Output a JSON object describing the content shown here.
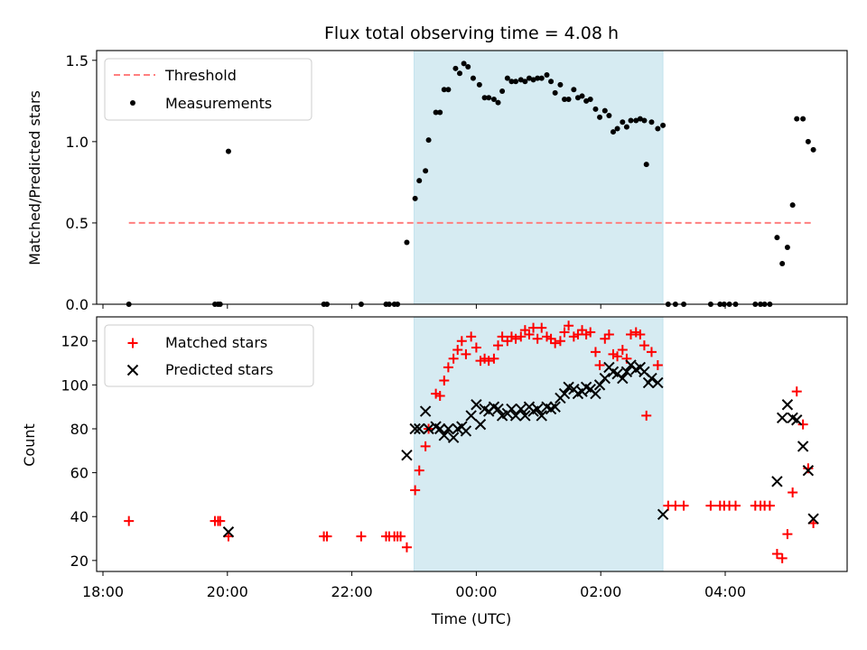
{
  "chart_data": {
    "title": "Flux total observing time = 4.08 h",
    "xlabel": "Time (UTC)",
    "x_ticks": [
      "18:00",
      "20:00",
      "22:00",
      "00:00",
      "02:00",
      "04:00"
    ],
    "shaded_interval": {
      "start": "23:00",
      "end": "03:00",
      "color": "#add8e6"
    },
    "top": {
      "type": "scatter",
      "ylabel": "Matched/Predicted stars",
      "ylim": [
        0,
        1.56
      ],
      "yticks": [
        "0.0",
        "0.5",
        "1.0",
        "1.5"
      ],
      "legend_position": "upper left",
      "threshold": {
        "name": "Threshold",
        "value": 0.5,
        "from": "18:25",
        "to": "05:25",
        "color": "#ff7f7f"
      },
      "series": [
        {
          "name": "Measurements",
          "color": "#000000",
          "points": [
            [
              "18:25",
              0
            ],
            [
              "19:48",
              0
            ],
            [
              "19:51",
              0
            ],
            [
              "19:53",
              0
            ],
            [
              "20:01",
              0.94
            ],
            [
              "21:33",
              0
            ],
            [
              "21:36",
              0
            ],
            [
              "22:09",
              0
            ],
            [
              "22:33",
              0
            ],
            [
              "22:36",
              0
            ],
            [
              "22:41",
              0
            ],
            [
              "22:44",
              0
            ],
            [
              "22:53",
              0.38
            ],
            [
              "23:01",
              0.65
            ],
            [
              "23:05",
              0.76
            ],
            [
              "23:11",
              0.82
            ],
            [
              "23:14",
              1.01
            ],
            [
              "23:21",
              1.18
            ],
            [
              "23:25",
              1.18
            ],
            [
              "23:29",
              1.32
            ],
            [
              "23:33",
              1.32
            ],
            [
              "23:40",
              1.45
            ],
            [
              "23:44",
              1.42
            ],
            [
              "23:48",
              1.48
            ],
            [
              "23:52",
              1.46
            ],
            [
              "23:57",
              1.39
            ],
            [
              "00:03",
              1.35
            ],
            [
              "00:08",
              1.27
            ],
            [
              "00:12",
              1.27
            ],
            [
              "00:17",
              1.26
            ],
            [
              "00:21",
              1.24
            ],
            [
              "00:25",
              1.31
            ],
            [
              "00:30",
              1.39
            ],
            [
              "00:34",
              1.37
            ],
            [
              "00:38",
              1.37
            ],
            [
              "00:43",
              1.38
            ],
            [
              "00:47",
              1.37
            ],
            [
              "00:51",
              1.39
            ],
            [
              "00:55",
              1.38
            ],
            [
              "00:59",
              1.39
            ],
            [
              "01:03",
              1.39
            ],
            [
              "01:08",
              1.41
            ],
            [
              "01:12",
              1.37
            ],
            [
              "01:16",
              1.3
            ],
            [
              "01:21",
              1.35
            ],
            [
              "01:25",
              1.26
            ],
            [
              "01:29",
              1.26
            ],
            [
              "01:34",
              1.32
            ],
            [
              "01:38",
              1.27
            ],
            [
              "01:42",
              1.28
            ],
            [
              "01:46",
              1.25
            ],
            [
              "01:50",
              1.26
            ],
            [
              "01:55",
              1.2
            ],
            [
              "01:59",
              1.15
            ],
            [
              "02:04",
              1.19
            ],
            [
              "02:08",
              1.16
            ],
            [
              "02:12",
              1.06
            ],
            [
              "02:16",
              1.08
            ],
            [
              "02:21",
              1.12
            ],
            [
              "02:25",
              1.09
            ],
            [
              "02:29",
              1.13
            ],
            [
              "02:34",
              1.13
            ],
            [
              "02:38",
              1.14
            ],
            [
              "02:42",
              1.13
            ],
            [
              "02:44",
              0.86
            ],
            [
              "02:49",
              1.12
            ],
            [
              "02:55",
              1.08
            ],
            [
              "03:00",
              1.1
            ],
            [
              "03:05",
              0
            ],
            [
              "03:12",
              0
            ],
            [
              "03:20",
              0
            ],
            [
              "03:46",
              0
            ],
            [
              "03:55",
              0
            ],
            [
              "03:59",
              0
            ],
            [
              "04:04",
              0
            ],
            [
              "04:10",
              0
            ],
            [
              "04:29",
              0
            ],
            [
              "04:34",
              0
            ],
            [
              "04:38",
              0
            ],
            [
              "04:43",
              0
            ],
            [
              "04:50",
              0.41
            ],
            [
              "04:55",
              0.25
            ],
            [
              "05:00",
              0.35
            ],
            [
              "05:05",
              0.61
            ],
            [
              "05:09",
              1.14
            ],
            [
              "05:15",
              1.14
            ],
            [
              "05:20",
              1.0
            ],
            [
              "05:25",
              0.95
            ]
          ]
        }
      ]
    },
    "bottom": {
      "type": "scatter",
      "ylabel": "Count",
      "ylim": [
        15,
        131
      ],
      "yticks": [
        "20",
        "40",
        "60",
        "80",
        "100",
        "120"
      ],
      "legend_position": "upper left",
      "series": [
        {
          "name": "Matched stars",
          "marker": "+",
          "color": "#ff0000",
          "points": [
            [
              "18:25",
              38
            ],
            [
              "19:48",
              38
            ],
            [
              "19:51",
              38
            ],
            [
              "19:53",
              38
            ],
            [
              "20:01",
              31
            ],
            [
              "21:33",
              31
            ],
            [
              "21:36",
              31
            ],
            [
              "22:09",
              31
            ],
            [
              "22:33",
              31
            ],
            [
              "22:36",
              31
            ],
            [
              "22:41",
              31
            ],
            [
              "22:44",
              31
            ],
            [
              "22:47",
              31
            ],
            [
              "22:53",
              26
            ],
            [
              "23:01",
              52
            ],
            [
              "23:05",
              61
            ],
            [
              "23:11",
              72
            ],
            [
              "23:14",
              80
            ],
            [
              "23:21",
              96
            ],
            [
              "23:25",
              95
            ],
            [
              "23:29",
              102
            ],
            [
              "23:33",
              108
            ],
            [
              "23:38",
              112
            ],
            [
              "23:42",
              116
            ],
            [
              "23:46",
              120
            ],
            [
              "23:50",
              114
            ],
            [
              "23:55",
              122
            ],
            [
              "00:00",
              117
            ],
            [
              "00:04",
              111
            ],
            [
              "00:08",
              112
            ],
            [
              "00:12",
              111
            ],
            [
              "00:17",
              112
            ],
            [
              "00:21",
              118
            ],
            [
              "00:25",
              122
            ],
            [
              "00:30",
              120
            ],
            [
              "00:34",
              122
            ],
            [
              "00:38",
              121
            ],
            [
              "00:43",
              122
            ],
            [
              "00:47",
              125
            ],
            [
              "00:51",
              123
            ],
            [
              "00:55",
              126
            ],
            [
              "00:59",
              121
            ],
            [
              "01:03",
              126
            ],
            [
              "01:08",
              122
            ],
            [
              "01:12",
              121
            ],
            [
              "01:16",
              119
            ],
            [
              "01:21",
              120
            ],
            [
              "01:25",
              124
            ],
            [
              "01:29",
              127
            ],
            [
              "01:34",
              122
            ],
            [
              "01:38",
              123
            ],
            [
              "01:42",
              125
            ],
            [
              "01:46",
              123
            ],
            [
              "01:50",
              124
            ],
            [
              "01:55",
              115
            ],
            [
              "01:59",
              109
            ],
            [
              "02:04",
              121
            ],
            [
              "02:08",
              123
            ],
            [
              "02:12",
              114
            ],
            [
              "02:16",
              113
            ],
            [
              "02:21",
              116
            ],
            [
              "02:25",
              112
            ],
            [
              "02:29",
              123
            ],
            [
              "02:34",
              124
            ],
            [
              "02:38",
              123
            ],
            [
              "02:42",
              118
            ],
            [
              "02:44",
              86
            ],
            [
              "02:49",
              115
            ],
            [
              "02:55",
              109
            ],
            [
              "03:05",
              45
            ],
            [
              "03:12",
              45
            ],
            [
              "03:20",
              45
            ],
            [
              "03:46",
              45
            ],
            [
              "03:55",
              45
            ],
            [
              "03:59",
              45
            ],
            [
              "04:04",
              45
            ],
            [
              "04:10",
              45
            ],
            [
              "04:29",
              45
            ],
            [
              "04:34",
              45
            ],
            [
              "04:38",
              45
            ],
            [
              "04:43",
              45
            ],
            [
              "04:50",
              23
            ],
            [
              "04:55",
              21
            ],
            [
              "05:00",
              32
            ],
            [
              "05:05",
              51
            ],
            [
              "05:09",
              97
            ],
            [
              "05:15",
              82
            ],
            [
              "05:20",
              62
            ],
            [
              "05:25",
              37
            ]
          ]
        },
        {
          "name": "Predicted stars",
          "marker": "x",
          "color": "#000000",
          "points": [
            [
              "20:01",
              33
            ],
            [
              "22:53",
              68
            ],
            [
              "23:01",
              80
            ],
            [
              "23:05",
              80
            ],
            [
              "23:11",
              88
            ],
            [
              "23:14",
              80
            ],
            [
              "23:21",
              81
            ],
            [
              "23:25",
              80
            ],
            [
              "23:29",
              77
            ],
            [
              "23:33",
              80
            ],
            [
              "23:38",
              76
            ],
            [
              "23:42",
              80
            ],
            [
              "23:46",
              81
            ],
            [
              "23:50",
              79
            ],
            [
              "23:55",
              86
            ],
            [
              "00:00",
              91
            ],
            [
              "00:04",
              82
            ],
            [
              "00:08",
              89
            ],
            [
              "00:12",
              88
            ],
            [
              "00:17",
              90
            ],
            [
              "00:21",
              89
            ],
            [
              "00:25",
              86
            ],
            [
              "00:30",
              87
            ],
            [
              "00:34",
              89
            ],
            [
              "00:38",
              86
            ],
            [
              "00:43",
              89
            ],
            [
              "00:47",
              86
            ],
            [
              "00:51",
              90
            ],
            [
              "00:55",
              88
            ],
            [
              "00:59",
              89
            ],
            [
              "01:03",
              86
            ],
            [
              "01:08",
              90
            ],
            [
              "01:12",
              89
            ],
            [
              "01:16",
              90
            ],
            [
              "01:21",
              94
            ],
            [
              "01:25",
              96
            ],
            [
              "01:29",
              99
            ],
            [
              "01:34",
              98
            ],
            [
              "01:38",
              96
            ],
            [
              "01:42",
              97
            ],
            [
              "01:46",
              99
            ],
            [
              "01:50",
              98
            ],
            [
              "01:55",
              96
            ],
            [
              "01:59",
              100
            ],
            [
              "02:04",
              103
            ],
            [
              "02:08",
              108
            ],
            [
              "02:12",
              106
            ],
            [
              "02:16",
              105
            ],
            [
              "02:21",
              103
            ],
            [
              "02:25",
              106
            ],
            [
              "02:29",
              109
            ],
            [
              "02:34",
              107
            ],
            [
              "02:38",
              108
            ],
            [
              "02:42",
              106
            ],
            [
              "02:46",
              101
            ],
            [
              "02:49",
              103
            ],
            [
              "02:55",
              101
            ],
            [
              "03:00",
              41
            ],
            [
              "04:50",
              56
            ],
            [
              "04:55",
              85
            ],
            [
              "05:00",
              91
            ],
            [
              "05:05",
              85
            ],
            [
              "05:09",
              84
            ],
            [
              "05:15",
              72
            ],
            [
              "05:20",
              61
            ],
            [
              "05:25",
              39
            ]
          ]
        }
      ]
    }
  }
}
